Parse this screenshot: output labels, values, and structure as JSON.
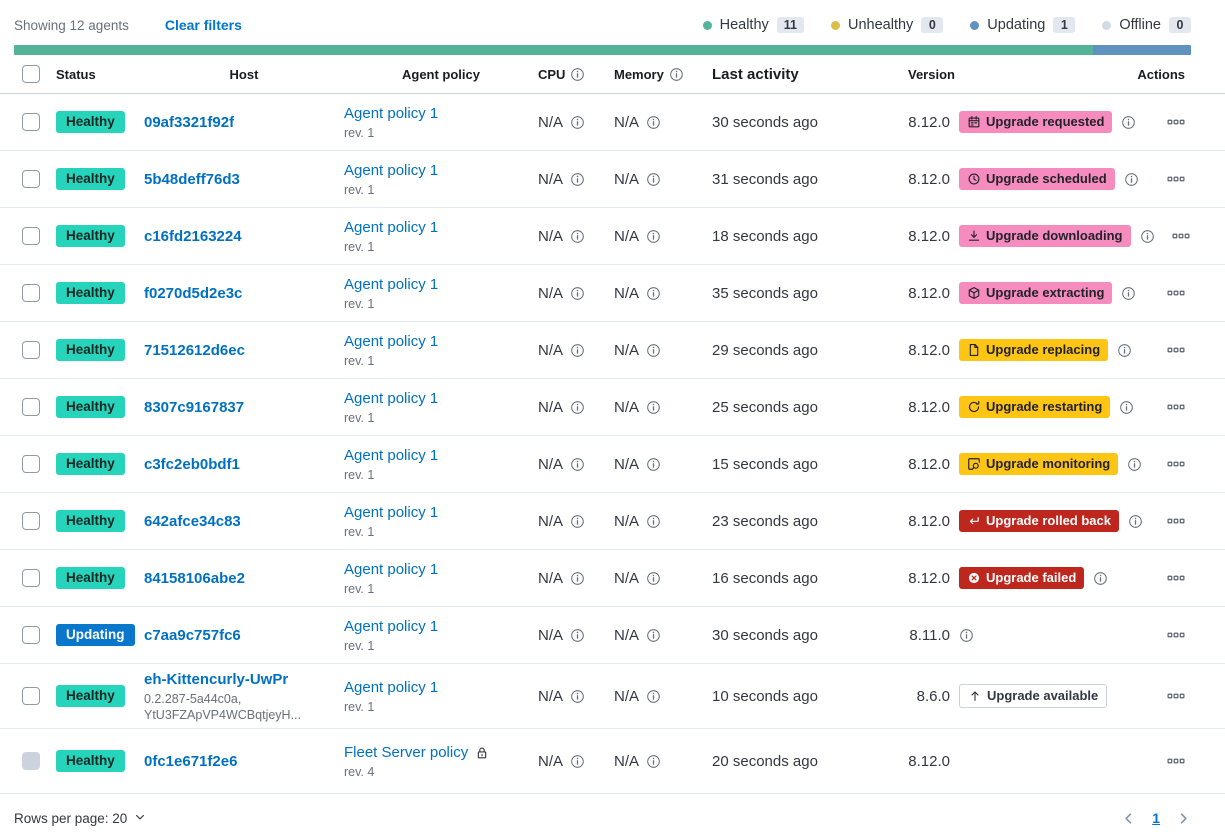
{
  "toolbar": {
    "showing": "Showing 12 agents",
    "clear_filters": "Clear filters"
  },
  "legend": [
    {
      "label": "Healthy",
      "count": "11",
      "color": "#54B399"
    },
    {
      "label": "Unhealthy",
      "count": "0",
      "color": "#D9BE4A"
    },
    {
      "label": "Updating",
      "count": "1",
      "color": "#6092C0"
    },
    {
      "label": "Offline",
      "count": "0",
      "color": "#D3DAE6"
    }
  ],
  "status_bar": {
    "segments": [
      {
        "color": "#54B399",
        "fraction": 0.9167
      },
      {
        "color": "#6092C0",
        "fraction": 0.0833
      }
    ]
  },
  "table": {
    "headers": {
      "status": "Status",
      "host": "Host",
      "policy": "Agent policy",
      "cpu": "CPU",
      "memory": "Memory",
      "last_activity": "Last activity",
      "version": "Version",
      "actions": "Actions"
    },
    "rows": [
      {
        "status": {
          "label": "Healthy",
          "style": "healthy"
        },
        "host": "09af3321f92f",
        "host_sub": "",
        "policy": "Agent policy 1",
        "policy_rev": "rev. 1",
        "policy_locked": false,
        "cpu": "N/A",
        "memory": "N/A",
        "last_activity": "30 seconds ago",
        "version": "8.12.0",
        "upgrade": {
          "label": "Upgrade requested",
          "style": "accent",
          "icon": "calendar-icon"
        },
        "version_info": true,
        "checkbox_disabled": false
      },
      {
        "status": {
          "label": "Healthy",
          "style": "healthy"
        },
        "host": "5b48deff76d3",
        "host_sub": "",
        "policy": "Agent policy 1",
        "policy_rev": "rev. 1",
        "policy_locked": false,
        "cpu": "N/A",
        "memory": "N/A",
        "last_activity": "31 seconds ago",
        "version": "8.12.0",
        "upgrade": {
          "label": "Upgrade scheduled",
          "style": "accent",
          "icon": "clock-icon"
        },
        "version_info": true,
        "checkbox_disabled": false
      },
      {
        "status": {
          "label": "Healthy",
          "style": "healthy"
        },
        "host": "c16fd2163224",
        "host_sub": "",
        "policy": "Agent policy 1",
        "policy_rev": "rev. 1",
        "policy_locked": false,
        "cpu": "N/A",
        "memory": "N/A",
        "last_activity": "18 seconds ago",
        "version": "8.12.0",
        "upgrade": {
          "label": "Upgrade downloading",
          "style": "accent",
          "icon": "download-icon"
        },
        "version_info": true,
        "checkbox_disabled": false
      },
      {
        "status": {
          "label": "Healthy",
          "style": "healthy"
        },
        "host": "f0270d5d2e3c",
        "host_sub": "",
        "policy": "Agent policy 1",
        "policy_rev": "rev. 1",
        "policy_locked": false,
        "cpu": "N/A",
        "memory": "N/A",
        "last_activity": "35 seconds ago",
        "version": "8.12.0",
        "upgrade": {
          "label": "Upgrade extracting",
          "style": "accent",
          "icon": "package-icon"
        },
        "version_info": true,
        "checkbox_disabled": false
      },
      {
        "status": {
          "label": "Healthy",
          "style": "healthy"
        },
        "host": "71512612d6ec",
        "host_sub": "",
        "policy": "Agent policy 1",
        "policy_rev": "rev. 1",
        "policy_locked": false,
        "cpu": "N/A",
        "memory": "N/A",
        "last_activity": "29 seconds ago",
        "version": "8.12.0",
        "upgrade": {
          "label": "Upgrade replacing",
          "style": "warning",
          "icon": "document-icon"
        },
        "version_info": true,
        "checkbox_disabled": false
      },
      {
        "status": {
          "label": "Healthy",
          "style": "healthy"
        },
        "host": "8307c9167837",
        "host_sub": "",
        "policy": "Agent policy 1",
        "policy_rev": "rev. 1",
        "policy_locked": false,
        "cpu": "N/A",
        "memory": "N/A",
        "last_activity": "25 seconds ago",
        "version": "8.12.0",
        "upgrade": {
          "label": "Upgrade restarting",
          "style": "warning",
          "icon": "refresh-icon"
        },
        "version_info": true,
        "checkbox_disabled": false
      },
      {
        "status": {
          "label": "Healthy",
          "style": "healthy"
        },
        "host": "c3fc2eb0bdf1",
        "host_sub": "",
        "policy": "Agent policy 1",
        "policy_rev": "rev. 1",
        "policy_locked": false,
        "cpu": "N/A",
        "memory": "N/A",
        "last_activity": "15 seconds ago",
        "version": "8.12.0",
        "upgrade": {
          "label": "Upgrade monitoring",
          "style": "warning",
          "icon": "inspect-icon"
        },
        "version_info": true,
        "checkbox_disabled": false
      },
      {
        "status": {
          "label": "Healthy",
          "style": "healthy"
        },
        "host": "642afce34c83",
        "host_sub": "",
        "policy": "Agent policy 1",
        "policy_rev": "rev. 1",
        "policy_locked": false,
        "cpu": "N/A",
        "memory": "N/A",
        "last_activity": "23 seconds ago",
        "version": "8.12.0",
        "upgrade": {
          "label": "Upgrade rolled back",
          "style": "danger",
          "icon": "return-icon"
        },
        "version_info": true,
        "checkbox_disabled": false
      },
      {
        "status": {
          "label": "Healthy",
          "style": "healthy"
        },
        "host": "84158106abe2",
        "host_sub": "",
        "policy": "Agent policy 1",
        "policy_rev": "rev. 1",
        "policy_locked": false,
        "cpu": "N/A",
        "memory": "N/A",
        "last_activity": "16 seconds ago",
        "version": "8.12.0",
        "upgrade": {
          "label": "Upgrade failed",
          "style": "danger",
          "icon": "error-icon"
        },
        "version_info": true,
        "checkbox_disabled": false
      },
      {
        "status": {
          "label": "Updating",
          "style": "updating"
        },
        "host": "c7aa9c757fc6",
        "host_sub": "",
        "policy": "Agent policy 1",
        "policy_rev": "rev. 1",
        "policy_locked": false,
        "cpu": "N/A",
        "memory": "N/A",
        "last_activity": "30 seconds ago",
        "version": "8.11.0",
        "upgrade": null,
        "version_info": true,
        "checkbox_disabled": false
      },
      {
        "status": {
          "label": "Healthy",
          "style": "healthy"
        },
        "host": "eh-Kittencurly-UwPr",
        "host_sub": "0.2.287-5a44c0a,\nYtU3FZApVP4WCBqtjeyH...",
        "policy": "Agent policy 1",
        "policy_rev": "rev. 1",
        "policy_locked": false,
        "cpu": "N/A",
        "memory": "N/A",
        "last_activity": "10 seconds ago",
        "version": "8.6.0",
        "upgrade": {
          "label": "Upgrade available",
          "style": "hollow",
          "icon": "arrow-up-icon"
        },
        "version_info": false,
        "checkbox_disabled": false
      },
      {
        "status": {
          "label": "Healthy",
          "style": "healthy"
        },
        "host": "0fc1e671f2e6",
        "host_sub": "",
        "policy": "Fleet Server policy",
        "policy_rev": "rev. 4",
        "policy_locked": true,
        "cpu": "N/A",
        "memory": "N/A",
        "last_activity": "20 seconds ago",
        "version": "8.12.0",
        "upgrade": null,
        "version_info": false,
        "checkbox_disabled": true
      }
    ]
  },
  "footer": {
    "rows_per_page": "Rows per page: 20",
    "page": "1"
  },
  "colors": {
    "healthy_badge": "#26D3BB",
    "updating_badge": "#0877CC",
    "accent_badge": "#F68CBE",
    "warning_badge": "#FEC514",
    "danger_badge": "#BD271E",
    "link": "#0077CC",
    "bar_green": "#54B399",
    "bar_blue": "#6092C0"
  }
}
